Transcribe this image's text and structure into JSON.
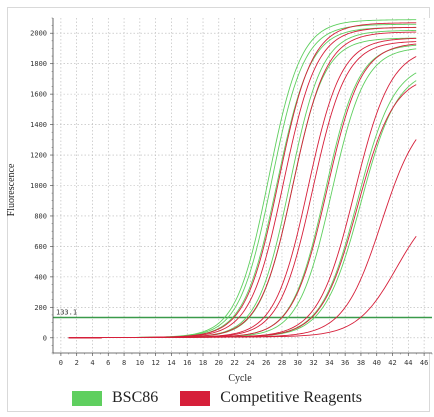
{
  "chart_data": {
    "type": "line",
    "title": "",
    "xlabel": "Cycle",
    "ylabel": "Fluorescence",
    "xlim": [
      -1,
      47
    ],
    "ylim": [
      -100,
      2100
    ],
    "x_ticks": [
      0,
      2,
      4,
      6,
      8,
      10,
      12,
      14,
      16,
      18,
      20,
      22,
      24,
      26,
      28,
      30,
      32,
      34,
      36,
      38,
      40,
      42,
      44,
      46
    ],
    "y_ticks": [
      0,
      200,
      400,
      600,
      800,
      1000,
      1200,
      1400,
      1600,
      1800,
      2000
    ],
    "threshold": {
      "label": "133.1",
      "value": 133.1,
      "color": "#3a9a4a"
    },
    "grid": true,
    "legend_position": "bottom",
    "legend": [
      {
        "name": "BSC86",
        "color": "#5fcf5f"
      },
      {
        "name": "Competitive Reagents",
        "color": "#d61f3a"
      }
    ],
    "series": [
      {
        "group": "BSC86",
        "ct": 26.3,
        "plateau": 2080,
        "slope": 2.05
      },
      {
        "group": "BSC86",
        "ct": 26.7,
        "plateau": 2050,
        "slope": 2.05
      },
      {
        "group": "BSC86",
        "ct": 27.4,
        "plateau": 2030,
        "slope": 2.1
      },
      {
        "group": "BSC86",
        "ct": 29.0,
        "plateau": 2010,
        "slope": 2.05
      },
      {
        "group": "BSC86",
        "ct": 29.3,
        "plateau": 1960,
        "slope": 2.05
      },
      {
        "group": "BSC86",
        "ct": 33.5,
        "plateau": 1920,
        "slope": 2.1
      },
      {
        "group": "BSC86",
        "ct": 34.3,
        "plateau": 1900,
        "slope": 2.1
      },
      {
        "group": "BSC86",
        "ct": 37.6,
        "plateau": 1800,
        "slope": 2.3
      },
      {
        "group": "BSC86",
        "ct": 38.0,
        "plateau": 1760,
        "slope": 2.3
      },
      {
        "group": "Competitive Reagents",
        "ct": 27.6,
        "plateau": 2060,
        "slope": 2.1
      },
      {
        "group": "Competitive Reagents",
        "ct": 28.2,
        "plateau": 2030,
        "slope": 2.1
      },
      {
        "group": "Competitive Reagents",
        "ct": 29.4,
        "plateau": 2000,
        "slope": 2.1
      },
      {
        "group": "Competitive Reagents",
        "ct": 31.3,
        "plateau": 1960,
        "slope": 2.1
      },
      {
        "group": "Competitive Reagents",
        "ct": 31.9,
        "plateau": 1940,
        "slope": 2.1
      },
      {
        "group": "Competitive Reagents",
        "ct": 33.7,
        "plateau": 1930,
        "slope": 2.15
      },
      {
        "group": "Competitive Reagents",
        "ct": 37.2,
        "plateau": 1900,
        "slope": 2.3
      },
      {
        "group": "Competitive Reagents",
        "ct": 37.6,
        "plateau": 1720,
        "slope": 2.3
      },
      {
        "group": "Competitive Reagents",
        "ct": 40.6,
        "plateau": 1500,
        "slope": 2.4
      },
      {
        "group": "Competitive Reagents",
        "ct": 42.5,
        "plateau": 900,
        "slope": 2.5
      }
    ]
  }
}
